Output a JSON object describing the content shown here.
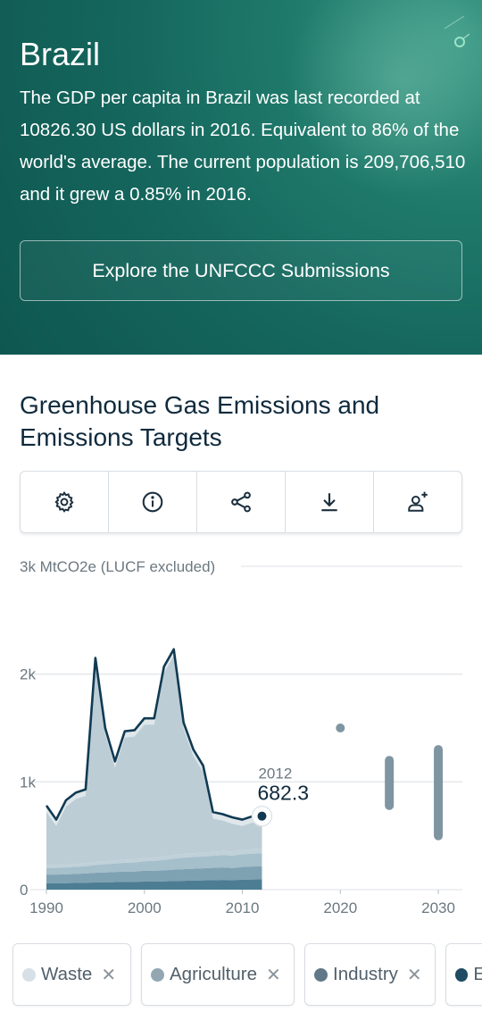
{
  "hero": {
    "country": "Brazil",
    "summary": "The GDP per capita in Brazil was last recorded at 10826.30 US dollars in 2016. Equivalent to 86% of the world's average. The current population is 209,706,510 and it grew a 0.85% in 2016.",
    "explore_button": "Explore the UNFCCC Submissions"
  },
  "section": {
    "title": "Greenhouse Gas Emissions and Emissions Targets"
  },
  "toolbar": [
    {
      "icon": "gear-icon"
    },
    {
      "icon": "info-icon"
    },
    {
      "icon": "share-icon"
    },
    {
      "icon": "download-icon"
    },
    {
      "icon": "add-user-icon"
    }
  ],
  "chart_data": {
    "type": "area",
    "unit_label": "3k MtCO2e (LUCF excluded)",
    "y_ticks": [
      {
        "value": 0,
        "label": "0"
      },
      {
        "value": 1000,
        "label": "1k"
      },
      {
        "value": 2000,
        "label": "2k"
      },
      {
        "value": 3000,
        "label": ""
      }
    ],
    "x_ticks": [
      1990,
      2000,
      2010,
      2020,
      2030
    ],
    "xlim": [
      1989,
      2031
    ],
    "ylim": [
      0,
      3000
    ],
    "x": [
      1990,
      1991,
      1992,
      1993,
      1994,
      1995,
      1996,
      1997,
      1998,
      1999,
      2000,
      2001,
      2002,
      2003,
      2004,
      2005,
      2006,
      2007,
      2008,
      2009,
      2010,
      2011,
      2012
    ],
    "total": [
      780,
      650,
      830,
      900,
      930,
      2150,
      1500,
      1190,
      1470,
      1480,
      1590,
      1590,
      2070,
      2230,
      1550,
      1300,
      1150,
      720,
      700,
      670,
      650,
      680,
      682.3
    ],
    "stack_series": [
      {
        "name": "Energy",
        "color": "#4d7d93",
        "values": [
          60,
          60,
          60,
          62,
          64,
          66,
          68,
          70,
          72,
          72,
          75,
          75,
          77,
          80,
          82,
          84,
          86,
          88,
          90,
          88,
          92,
          94,
          95
        ]
      },
      {
        "name": "Industry",
        "color": "#7fa2b3",
        "values": [
          80,
          80,
          82,
          84,
          86,
          90,
          92,
          94,
          96,
          96,
          100,
          100,
          102,
          105,
          108,
          110,
          112,
          114,
          116,
          112,
          118,
          120,
          121
        ]
      },
      {
        "name": "Agriculture",
        "color": "#a5bfcb",
        "values": [
          60,
          62,
          64,
          66,
          68,
          72,
          76,
          78,
          82,
          84,
          88,
          92,
          96,
          102,
          106,
          108,
          110,
          112,
          114,
          116,
          118,
          120,
          122
        ]
      },
      {
        "name": "Waste",
        "color": "#c0d1d9",
        "values": [
          25,
          25,
          26,
          26,
          27,
          28,
          28,
          29,
          30,
          30,
          31,
          32,
          33,
          34,
          35,
          36,
          36,
          37,
          38,
          38,
          39,
          40,
          40
        ]
      }
    ],
    "last_point": {
      "year": "2012",
      "value": "682.3"
    },
    "targets": [
      {
        "year": 2020,
        "value": 1500,
        "kind": "point"
      },
      {
        "year": 2025,
        "low": 780,
        "high": 1200,
        "kind": "range"
      },
      {
        "year": 2030,
        "low": 500,
        "high": 1300,
        "kind": "range"
      }
    ],
    "colors": {
      "line": "#113a52",
      "area_top": "#bccdd5",
      "target": "#7f95a2",
      "grid": "#e3e7ea"
    }
  },
  "legend_chips": [
    {
      "label": "Waste",
      "color": "#d6e0e6"
    },
    {
      "label": "Agriculture",
      "color": "#93a7b3"
    },
    {
      "label": "Industry",
      "color": "#607887"
    },
    {
      "label": "E",
      "color": "#1f4b63"
    }
  ]
}
